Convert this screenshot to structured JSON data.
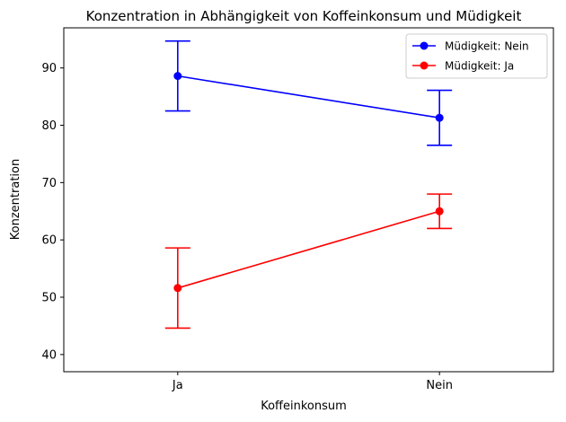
{
  "chart_data": {
    "type": "line",
    "title": "Konzentration in Abhängigkeit von Koffeinkonsum und Müdigkeit",
    "xlabel": "Koffeinkonsum",
    "ylabel": "Konzentration",
    "categories": [
      "Ja",
      "Nein"
    ],
    "ylim": [
      37,
      97
    ],
    "yticks": [
      40,
      50,
      60,
      70,
      80,
      90
    ],
    "grid": false,
    "legend_position": "top-right",
    "series": [
      {
        "name": "Müdigkeit: Nein",
        "color": "#0000ff",
        "values": [
          88.6,
          81.3
        ],
        "error": [
          6.1,
          4.8
        ]
      },
      {
        "name": "Müdigkeit: Ja",
        "color": "#ff0000",
        "values": [
          51.6,
          65.0
        ],
        "error": [
          7.0,
          3.0
        ]
      }
    ]
  }
}
